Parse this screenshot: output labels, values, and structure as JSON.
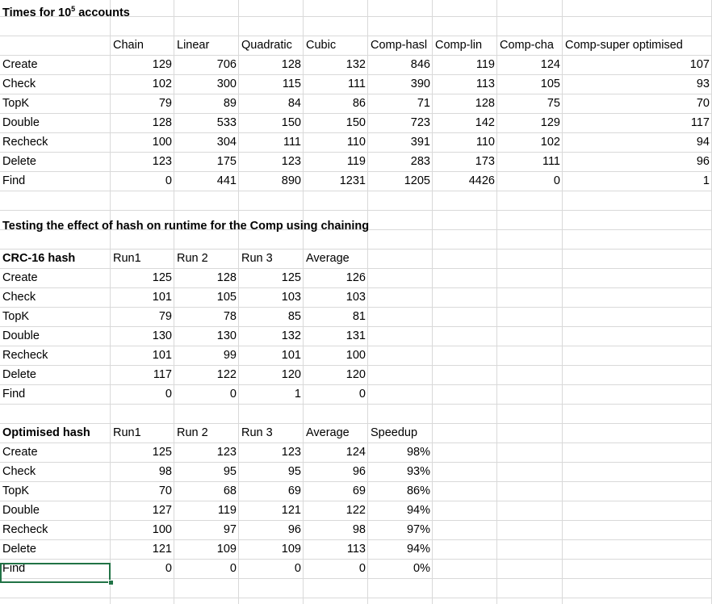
{
  "section1": {
    "title_prefix": "Times for 10",
    "title_sup": "5",
    "title_suffix": " accounts",
    "headers": [
      "Chain",
      "Linear",
      "Quadratic",
      "Cubic",
      "Comp-hasl",
      "Comp-lin",
      "Comp-cha",
      "Comp-super optimised"
    ],
    "rows": [
      {
        "label": "Create",
        "values": [
          "129",
          "706",
          "128",
          "132",
          "846",
          "119",
          "124",
          "107"
        ]
      },
      {
        "label": "Check",
        "values": [
          "102",
          "300",
          "115",
          "111",
          "390",
          "113",
          "105",
          "93"
        ]
      },
      {
        "label": "TopK",
        "values": [
          "79",
          "89",
          "84",
          "86",
          "71",
          "128",
          "75",
          "70"
        ]
      },
      {
        "label": "Double",
        "values": [
          "128",
          "533",
          "150",
          "150",
          "723",
          "142",
          "129",
          "117"
        ]
      },
      {
        "label": "Recheck",
        "values": [
          "100",
          "304",
          "111",
          "110",
          "391",
          "110",
          "102",
          "94"
        ]
      },
      {
        "label": "Delete",
        "values": [
          "123",
          "175",
          "123",
          "119",
          "283",
          "173",
          "111",
          "96"
        ]
      },
      {
        "label": "Find",
        "values": [
          "0",
          "441",
          "890",
          "1231",
          "1205",
          "4426",
          "0",
          "1"
        ]
      }
    ]
  },
  "section2": {
    "title": "Testing the effect of hash on runtime for the Comp using chaining",
    "row_header": "CRC-16 hash",
    "headers": [
      "Run1",
      "Run 2",
      "Run 3",
      "Average"
    ],
    "rows": [
      {
        "label": "Create",
        "values": [
          "125",
          "128",
          "125",
          "126"
        ]
      },
      {
        "label": "Check",
        "values": [
          "101",
          "105",
          "103",
          "103"
        ]
      },
      {
        "label": "TopK",
        "values": [
          "79",
          "78",
          "85",
          "81"
        ]
      },
      {
        "label": "Double",
        "values": [
          "130",
          "130",
          "132",
          "131"
        ]
      },
      {
        "label": "Recheck",
        "values": [
          "101",
          "99",
          "101",
          "100"
        ]
      },
      {
        "label": "Delete",
        "values": [
          "117",
          "122",
          "120",
          "120"
        ]
      },
      {
        "label": "Find",
        "values": [
          "0",
          "0",
          "1",
          "0"
        ]
      }
    ]
  },
  "section3": {
    "row_header": "Optimised hash",
    "headers": [
      "Run1",
      "Run 2",
      "Run 3",
      "Average",
      "Speedup"
    ],
    "rows": [
      {
        "label": "Create",
        "values": [
          "125",
          "123",
          "123",
          "124",
          "98%"
        ]
      },
      {
        "label": "Check",
        "values": [
          "98",
          "95",
          "95",
          "96",
          "93%"
        ]
      },
      {
        "label": "TopK",
        "values": [
          "70",
          "68",
          "69",
          "69",
          "86%"
        ]
      },
      {
        "label": "Double",
        "values": [
          "127",
          "119",
          "121",
          "122",
          "94%"
        ]
      },
      {
        "label": "Recheck",
        "values": [
          "100",
          "97",
          "96",
          "98",
          "97%"
        ]
      },
      {
        "label": "Delete",
        "values": [
          "121",
          "109",
          "109",
          "113",
          "94%"
        ]
      },
      {
        "label": "Find",
        "values": [
          "0",
          "0",
          "0",
          "0",
          "0%"
        ]
      }
    ]
  },
  "colors": {
    "gridline": "#d9d9d9",
    "selection": "#217346"
  }
}
